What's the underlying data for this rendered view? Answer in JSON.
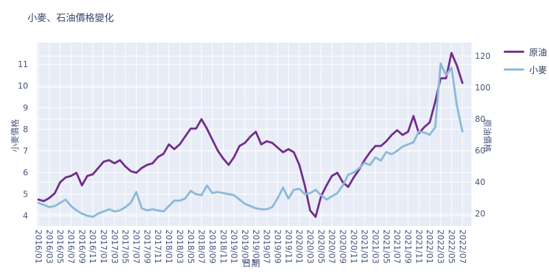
{
  "title": "小麥、石油價格變化",
  "chart_data": {
    "type": "line",
    "title": "小麥、石油價格變化",
    "xlabel": "日期",
    "legend_position": "top-right",
    "grid": true,
    "plot_bg_color": "#e7ecf6",
    "grid_color": "#ffffff",
    "tick_label_color": "#47567d",
    "title_color": "#35466b",
    "x_tick_labels": [
      "2016/01",
      "2016/03",
      "2016/05",
      "2016/07",
      "2016/09",
      "2016/11",
      "2017/01",
      "2017/03",
      "2017/05",
      "2017/07",
      "2017/09",
      "2017/11",
      "2018/01",
      "2018/03",
      "2018/05",
      "2018/07",
      "2018/09",
      "2018/11",
      "2019/01",
      "2019/03",
      "2019/05",
      "2019/07",
      "2019/09",
      "2019/11",
      "2020/01",
      "2020/03",
      "2020/05",
      "2020/07",
      "2020/09",
      "2020/11",
      "2021/01",
      "2021/03",
      "2021/05",
      "2021/07",
      "2021/09",
      "2021/11",
      "2022/01",
      "2022/03",
      "2022/05",
      "2022/07"
    ],
    "x": [
      "2016/01",
      "2016/02",
      "2016/03",
      "2016/04",
      "2016/05",
      "2016/06",
      "2016/07",
      "2016/08",
      "2016/09",
      "2016/10",
      "2016/11",
      "2016/12",
      "2017/01",
      "2017/02",
      "2017/03",
      "2017/04",
      "2017/05",
      "2017/06",
      "2017/07",
      "2017/08",
      "2017/09",
      "2017/10",
      "2017/11",
      "2017/12",
      "2018/01",
      "2018/02",
      "2018/03",
      "2018/04",
      "2018/05",
      "2018/06",
      "2018/07",
      "2018/08",
      "2018/09",
      "2018/10",
      "2018/11",
      "2018/12",
      "2019/01",
      "2019/02",
      "2019/03",
      "2019/04",
      "2019/05",
      "2019/06",
      "2019/07",
      "2019/08",
      "2019/09",
      "2019/10",
      "2019/11",
      "2019/12",
      "2020/01",
      "2020/02",
      "2020/03",
      "2020/04",
      "2020/05",
      "2020/06",
      "2020/07",
      "2020/08",
      "2020/09",
      "2020/10",
      "2020/11",
      "2020/12",
      "2021/01",
      "2021/02",
      "2021/03",
      "2021/04",
      "2021/05",
      "2021/06",
      "2021/07",
      "2021/08",
      "2021/09",
      "2021/10",
      "2021/11",
      "2021/12",
      "2022/01",
      "2022/02",
      "2022/03",
      "2022/04",
      "2022/05",
      "2022/06",
      "2022/07"
    ],
    "left_axis": {
      "label": "小麥價格",
      "ticks": [
        4,
        5,
        6,
        7,
        8,
        9,
        10,
        11
      ],
      "range": [
        3.5,
        12.0
      ]
    },
    "right_axis": {
      "label": "原油價格",
      "ticks": [
        20,
        40,
        60,
        80,
        100,
        120
      ],
      "range": [
        12,
        129
      ]
    },
    "series": [
      {
        "name": "原油",
        "axis": "right",
        "color": "#722e8b",
        "values": [
          29,
          28,
          30,
          33,
          40,
          43,
          44,
          46,
          38,
          44,
          45,
          49,
          53,
          54,
          52,
          54,
          50,
          47,
          46,
          49,
          51,
          52,
          56,
          58,
          64,
          61,
          64,
          69,
          74,
          74,
          80,
          74,
          67,
          60,
          55,
          51,
          56,
          63,
          65,
          69,
          72,
          64,
          66,
          65,
          62,
          59,
          61,
          59,
          51,
          38,
          22,
          18,
          31,
          38,
          44,
          46,
          40,
          37,
          43,
          48,
          54,
          59,
          63,
          63,
          66,
          70,
          73,
          70,
          72,
          82,
          71,
          75,
          78,
          91,
          106,
          106,
          122,
          114,
          103
        ]
      },
      {
        "name": "小麥",
        "axis": "left",
        "color": "#8cb9da",
        "values": [
          4.6,
          4.5,
          4.4,
          4.45,
          4.6,
          4.75,
          4.45,
          4.25,
          4.1,
          4.0,
          3.95,
          4.1,
          4.2,
          4.3,
          4.2,
          4.25,
          4.4,
          4.6,
          5.1,
          4.35,
          4.25,
          4.3,
          4.25,
          4.2,
          4.45,
          4.7,
          4.7,
          4.8,
          5.15,
          5.0,
          4.95,
          5.4,
          5.05,
          5.1,
          5.05,
          5.0,
          4.95,
          4.75,
          4.55,
          4.45,
          4.35,
          4.3,
          4.3,
          4.4,
          4.8,
          5.3,
          4.8,
          5.2,
          5.25,
          5.0,
          5.05,
          5.2,
          4.95,
          4.75,
          4.9,
          5.05,
          5.4,
          5.9,
          6.0,
          6.2,
          6.45,
          6.35,
          6.7,
          6.55,
          6.95,
          6.85,
          7.0,
          7.2,
          7.3,
          7.4,
          7.9,
          7.85,
          7.75,
          8.1,
          11.05,
          10.5,
          10.85,
          9.1,
          7.9
        ]
      }
    ]
  }
}
